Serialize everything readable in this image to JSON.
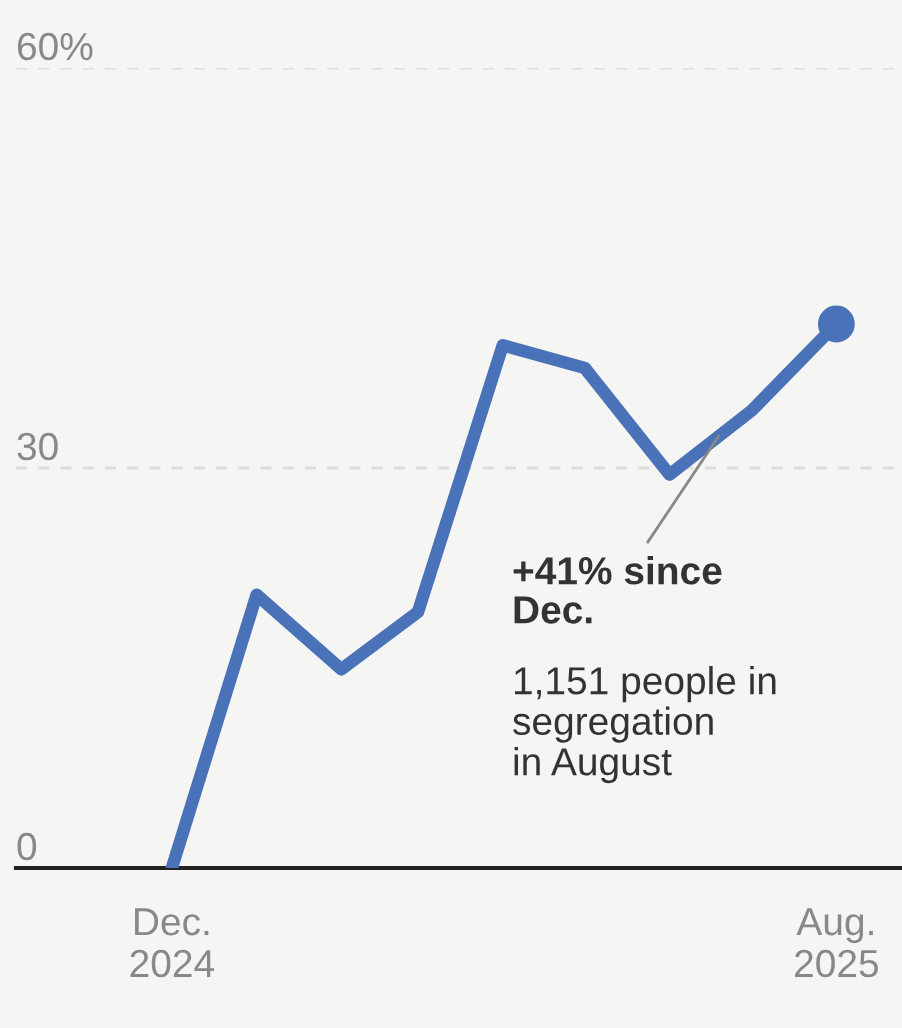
{
  "chart_data": {
    "type": "line",
    "x": [
      "2024-12",
      "2025-01",
      "2025-02",
      "2025-03",
      "2025-04",
      "2025-05",
      "2025-06",
      "2025-07",
      "2025-08"
    ],
    "series": [
      {
        "color": "#4a72b8",
        "values": [
          0,
          20.5,
          14.9,
          19.2,
          39.2,
          37.5,
          29.5,
          34.3,
          40.8
        ]
      },
      {
        "type": "scatter",
        "color": "#4a72b8",
        "x": [
          "2025-08"
        ],
        "values": [
          40.8
        ],
        "marker": "circle"
      }
    ],
    "xlim": [
      "2024-10-05",
      "2025-08-25"
    ],
    "xticks": [
      {
        "value": "2024-12",
        "label": "Dec.\n2024"
      },
      {
        "value": "2025-08",
        "label": "Aug.\n2025"
      }
    ],
    "ylim": [
      0,
      60
    ],
    "yticks": [
      {
        "value": 0,
        "label": "0"
      },
      {
        "value": 30,
        "label": "30"
      },
      {
        "value": 60,
        "label": "60%"
      }
    ],
    "grid": "y",
    "marker": "none",
    "line_style": "solid",
    "annotations": [
      {
        "text": "+41% since\nDec.",
        "x": "2025-06-19",
        "y": 32.4
      },
      "1,151 people in\nsegregation\nin August"
    ]
  }
}
